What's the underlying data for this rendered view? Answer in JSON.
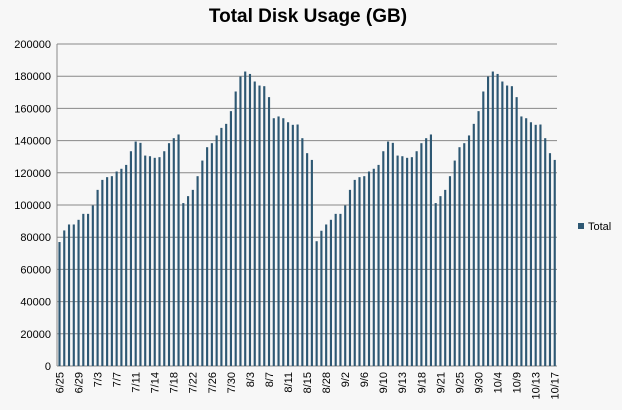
{
  "chart_data": {
    "type": "bar",
    "title": "Total Disk Usage (GB)",
    "xlabel": "",
    "ylabel": "",
    "ylim": [
      0,
      200000
    ],
    "yticks": [
      0,
      20000,
      40000,
      60000,
      80000,
      100000,
      120000,
      140000,
      160000,
      180000,
      200000
    ],
    "grid": true,
    "legend_position": "right",
    "series": [
      {
        "name": "Total",
        "color": "#2e5873",
        "values": [
          77000,
          84200,
          87900,
          87900,
          90800,
          94500,
          94500,
          99700,
          109400,
          115600,
          117300,
          117900,
          120800,
          122500,
          124900,
          133400,
          139400,
          138600,
          130700,
          130300,
          129300,
          129700,
          133400,
          138400,
          141500,
          143800,
          101200,
          105500,
          109400,
          117900,
          127600,
          135900,
          138400,
          143200,
          147900,
          150400,
          158300,
          170500,
          179800,
          182900,
          181400,
          176700,
          174200,
          173800,
          167000,
          153900,
          155000,
          153900,
          151400,
          149800,
          150000,
          141500,
          132200,
          128000,
          77500,
          84000,
          87900,
          90800,
          94500,
          94500,
          99700,
          109400,
          115600,
          117300,
          117900,
          120800,
          122500,
          124900,
          133400,
          139400,
          138600,
          130700,
          130300,
          129300,
          129700,
          133400,
          138400,
          141500,
          143800,
          101200,
          105500,
          109400,
          117900,
          127600,
          135900,
          138400,
          143200,
          150400,
          158300,
          170500,
          179800,
          182900,
          181400,
          176700,
          174200,
          173800,
          167000,
          155000,
          153900,
          151400,
          149800,
          150000,
          141500,
          132200,
          128000
        ]
      }
    ],
    "x_tick_labels": [
      "6/25",
      "6/29",
      "7/3",
      "7/7",
      "7/11",
      "7/14",
      "7/18",
      "7/22",
      "7/26",
      "7/30",
      "8/3",
      "8/7",
      "8/11",
      "8/15",
      "8/28",
      "9/2",
      "9/6",
      "9/10",
      "9/13",
      "9/18",
      "9/21",
      "9/25",
      "9/30",
      "10/4",
      "10/9",
      "10/13",
      "10/17"
    ]
  }
}
